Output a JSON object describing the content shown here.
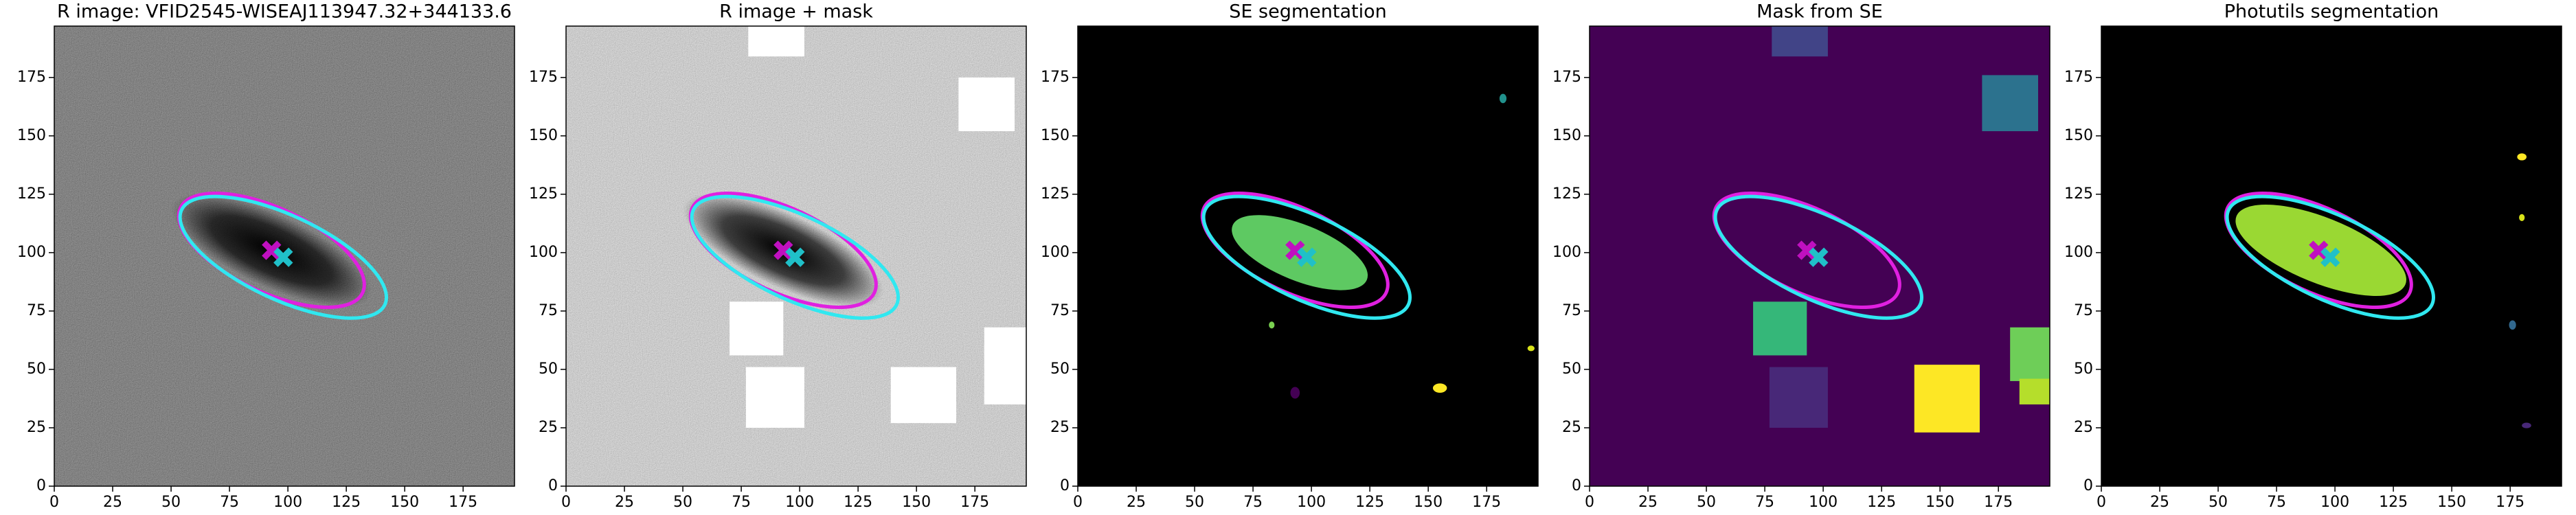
{
  "chart_data": [
    {
      "type": "image",
      "title": "R image: VFID2545-WISEAJ113947.32+344133.6",
      "xlim": [
        0,
        197
      ],
      "ylim": [
        0,
        197
      ],
      "xticks": [
        0,
        25,
        50,
        75,
        100,
        125,
        150,
        175
      ],
      "yticks": [
        0,
        25,
        50,
        75,
        100,
        125,
        150,
        175
      ],
      "background": "#3c3c3c",
      "noise": true,
      "regions": [
        {
          "shape": "ellipse",
          "cx": 93,
          "cy": 101,
          "rx": 36,
          "ry": 12,
          "angle": -25,
          "color": "#000000"
        }
      ],
      "ellipses": [
        {
          "cx": 93,
          "cy": 101,
          "rx": 43,
          "ry": 18,
          "angle": -25,
          "color": "#e020e0"
        },
        {
          "cx": 98,
          "cy": 98,
          "rx": 48,
          "ry": 18,
          "angle": -25,
          "color": "#30e8f0"
        }
      ],
      "markers": [
        {
          "x": 93,
          "y": 101,
          "color": "#c010c0"
        },
        {
          "x": 98,
          "y": 98,
          "color": "#20c0c8"
        }
      ]
    },
    {
      "type": "image",
      "title": "R image + mask",
      "xlim": [
        0,
        197
      ],
      "ylim": [
        0,
        197
      ],
      "xticks": [
        0,
        25,
        50,
        75,
        100,
        125,
        150,
        175
      ],
      "yticks": [
        0,
        25,
        50,
        75,
        100,
        125,
        150,
        175
      ],
      "background": "#dcdcdc",
      "noise": true,
      "regions": [
        {
          "shape": "ellipse",
          "cx": 93,
          "cy": 101,
          "rx": 36,
          "ry": 12,
          "angle": -25,
          "color": "#000000"
        },
        {
          "shape": "rect",
          "x0": 78,
          "x1": 102,
          "y0": 184,
          "y1": 197,
          "color": "#ffffff"
        },
        {
          "shape": "rect",
          "x0": 168,
          "x1": 192,
          "y0": 152,
          "y1": 175,
          "color": "#ffffff"
        },
        {
          "shape": "rect",
          "x0": 70,
          "x1": 93,
          "y0": 56,
          "y1": 79,
          "color": "#ffffff"
        },
        {
          "shape": "rect",
          "x0": 77,
          "x1": 102,
          "y0": 25,
          "y1": 51,
          "color": "#ffffff"
        },
        {
          "shape": "rect",
          "x0": 139,
          "x1": 167,
          "y0": 27,
          "y1": 51,
          "color": "#ffffff"
        },
        {
          "shape": "rect",
          "x0": 179,
          "x1": 197,
          "y0": 35,
          "y1": 68,
          "color": "#ffffff"
        }
      ],
      "ellipses": [
        {
          "cx": 93,
          "cy": 101,
          "rx": 43,
          "ry": 18,
          "angle": -25,
          "color": "#e020e0"
        },
        {
          "cx": 98,
          "cy": 98,
          "rx": 48,
          "ry": 18,
          "angle": -25,
          "color": "#30e8f0"
        }
      ],
      "markers": [
        {
          "x": 93,
          "y": 101,
          "color": "#c010c0"
        },
        {
          "x": 98,
          "y": 98,
          "color": "#20c0c8"
        }
      ]
    },
    {
      "type": "image",
      "title": "SE segmentation",
      "xlim": [
        0,
        197
      ],
      "ylim": [
        0,
        197
      ],
      "xticks": [
        0,
        25,
        50,
        75,
        100,
        125,
        150,
        175
      ],
      "yticks": [
        0,
        25,
        50,
        75,
        100,
        125,
        150,
        175
      ],
      "background": "#000000",
      "noise": false,
      "regions": [
        {
          "shape": "ellipse",
          "cx": 95,
          "cy": 100,
          "rx": 31,
          "ry": 12,
          "angle": -22,
          "color": "#5ec962"
        },
        {
          "shape": "ellipse",
          "cx": 182,
          "cy": 166,
          "rx": 1.5,
          "ry": 2,
          "angle": 0,
          "color": "#21918c"
        },
        {
          "shape": "ellipse",
          "cx": 83,
          "cy": 69,
          "rx": 1.2,
          "ry": 1.5,
          "angle": 0,
          "color": "#7ad151"
        },
        {
          "shape": "ellipse",
          "cx": 93,
          "cy": 40,
          "rx": 2,
          "ry": 2.5,
          "angle": 0,
          "color": "#440154"
        },
        {
          "shape": "ellipse",
          "cx": 155,
          "cy": 42,
          "rx": 3,
          "ry": 2,
          "angle": 0,
          "color": "#fde725"
        },
        {
          "shape": "ellipse",
          "cx": 194,
          "cy": 59,
          "rx": 1.5,
          "ry": 1.2,
          "angle": 0,
          "color": "#d8e219"
        }
      ],
      "ellipses": [
        {
          "cx": 93,
          "cy": 101,
          "rx": 43,
          "ry": 18,
          "angle": -25,
          "color": "#e020e0"
        },
        {
          "cx": 98,
          "cy": 98,
          "rx": 48,
          "ry": 18,
          "angle": -25,
          "color": "#30e8f0"
        }
      ],
      "markers": [
        {
          "x": 93,
          "y": 101,
          "color": "#c010c0"
        },
        {
          "x": 98,
          "y": 98,
          "color": "#20c0c8"
        }
      ]
    },
    {
      "type": "image",
      "title": "Mask from SE",
      "xlim": [
        0,
        197
      ],
      "ylim": [
        0,
        197
      ],
      "xticks": [
        0,
        25,
        50,
        75,
        100,
        125,
        150,
        175
      ],
      "yticks": [
        0,
        25,
        50,
        75,
        100,
        125,
        150,
        175
      ],
      "background": "#440154",
      "noise": false,
      "regions": [
        {
          "shape": "rect",
          "x0": 78,
          "x1": 102,
          "y0": 184,
          "y1": 197,
          "color": "#414487"
        },
        {
          "shape": "rect",
          "x0": 168,
          "x1": 192,
          "y0": 152,
          "y1": 176,
          "color": "#2c728e"
        },
        {
          "shape": "rect",
          "x0": 70,
          "x1": 93,
          "y0": 56,
          "y1": 79,
          "color": "#35b779"
        },
        {
          "shape": "rect",
          "x0": 77,
          "x1": 102,
          "y0": 25,
          "y1": 51,
          "color": "#482878"
        },
        {
          "shape": "rect",
          "x0": 139,
          "x1": 167,
          "y0": 23,
          "y1": 52,
          "color": "#fde725"
        },
        {
          "shape": "rect",
          "x0": 180,
          "x1": 197,
          "y0": 45,
          "y1": 68,
          "color": "#6ece58"
        },
        {
          "shape": "rect",
          "x0": 184,
          "x1": 197,
          "y0": 35,
          "y1": 46,
          "color": "#b5de2b"
        }
      ],
      "ellipses": [
        {
          "cx": 93,
          "cy": 101,
          "rx": 43,
          "ry": 18,
          "angle": -25,
          "color": "#e020e0"
        },
        {
          "cx": 98,
          "cy": 98,
          "rx": 48,
          "ry": 18,
          "angle": -25,
          "color": "#30e8f0"
        }
      ],
      "markers": [
        {
          "x": 93,
          "y": 101,
          "color": "#c010c0"
        },
        {
          "x": 98,
          "y": 98,
          "color": "#20c0c8"
        }
      ]
    },
    {
      "type": "image",
      "title": "Photutils segmentation",
      "xlim": [
        0,
        197
      ],
      "ylim": [
        0,
        197
      ],
      "xticks": [
        0,
        25,
        50,
        75,
        100,
        125,
        150,
        175
      ],
      "yticks": [
        0,
        25,
        50,
        75,
        100,
        125,
        150,
        175
      ],
      "background": "#000000",
      "noise": false,
      "regions": [
        {
          "shape": "ellipse",
          "cx": 94,
          "cy": 101,
          "rx": 39,
          "ry": 14,
          "angle": -22,
          "color": "#9ad833"
        },
        {
          "shape": "ellipse",
          "cx": 180,
          "cy": 141,
          "rx": 2,
          "ry": 1.5,
          "angle": 0,
          "color": "#fde725"
        },
        {
          "shape": "ellipse",
          "cx": 180,
          "cy": 115,
          "rx": 1.2,
          "ry": 1.5,
          "angle": 0,
          "color": "#d8e219"
        },
        {
          "shape": "ellipse",
          "cx": 176,
          "cy": 69,
          "rx": 1.5,
          "ry": 2,
          "angle": 0,
          "color": "#31688e"
        },
        {
          "shape": "ellipse",
          "cx": 182,
          "cy": 26,
          "rx": 2,
          "ry": 1.2,
          "angle": 0,
          "color": "#482878"
        }
      ],
      "ellipses": [
        {
          "cx": 93,
          "cy": 101,
          "rx": 43,
          "ry": 18,
          "angle": -25,
          "color": "#e020e0"
        },
        {
          "cx": 98,
          "cy": 98,
          "rx": 48,
          "ry": 18,
          "angle": -25,
          "color": "#30e8f0"
        }
      ],
      "markers": [
        {
          "x": 93,
          "y": 101,
          "color": "#c010c0"
        },
        {
          "x": 98,
          "y": 98,
          "color": "#20c0c8"
        }
      ]
    }
  ]
}
